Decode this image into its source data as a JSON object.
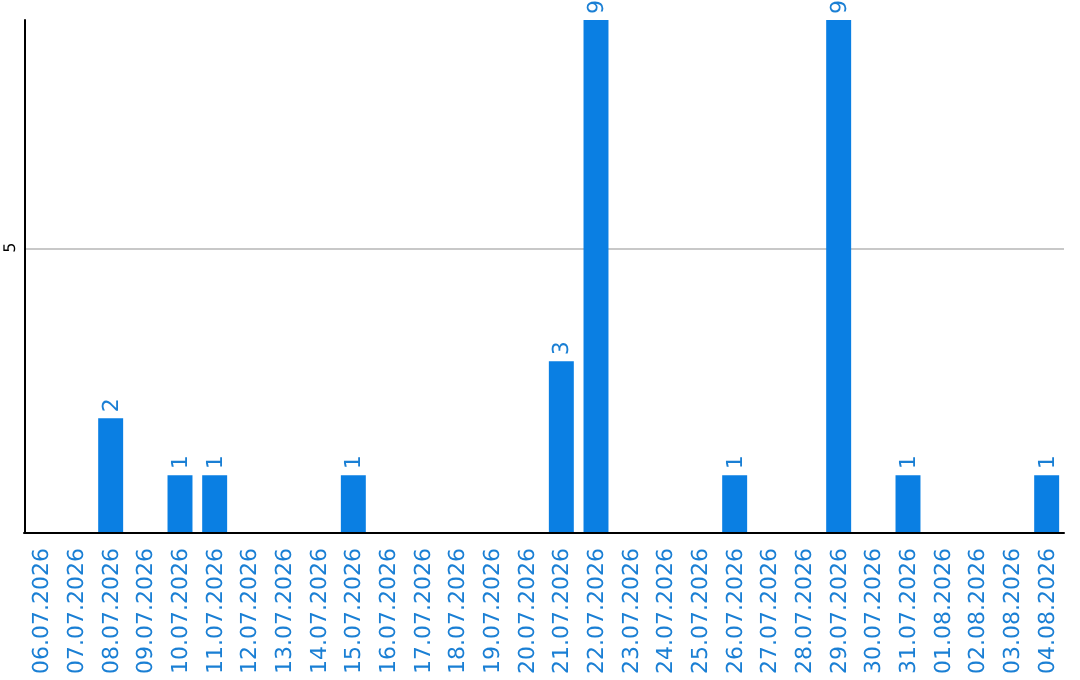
{
  "chart_data": {
    "type": "bar",
    "categories": [
      "06.07.2026",
      "07.07.2026",
      "08.07.2026",
      "09.07.2026",
      "10.07.2026",
      "11.07.2026",
      "12.07.2026",
      "13.07.2026",
      "14.07.2026",
      "15.07.2026",
      "16.07.2026",
      "17.07.2026",
      "18.07.2026",
      "19.07.2026",
      "20.07.2026",
      "21.07.2026",
      "22.07.2026",
      "23.07.2026",
      "24.07.2026",
      "25.07.2026",
      "26.07.2026",
      "27.07.2026",
      "28.07.2026",
      "29.07.2026",
      "30.07.2026",
      "31.07.2026",
      "01.08.2026",
      "02.08.2026",
      "03.08.2026",
      "04.08.2026"
    ],
    "values": [
      null,
      null,
      2,
      null,
      1,
      1,
      null,
      null,
      null,
      1,
      null,
      null,
      null,
      null,
      null,
      3,
      9,
      null,
      null,
      null,
      1,
      null,
      null,
      9,
      null,
      1,
      null,
      null,
      null,
      1
    ],
    "color": "#0a7fe3",
    "ylim": [
      0,
      9
    ],
    "yticks": [
      5
    ],
    "grid": "y",
    "data_labels": true
  }
}
